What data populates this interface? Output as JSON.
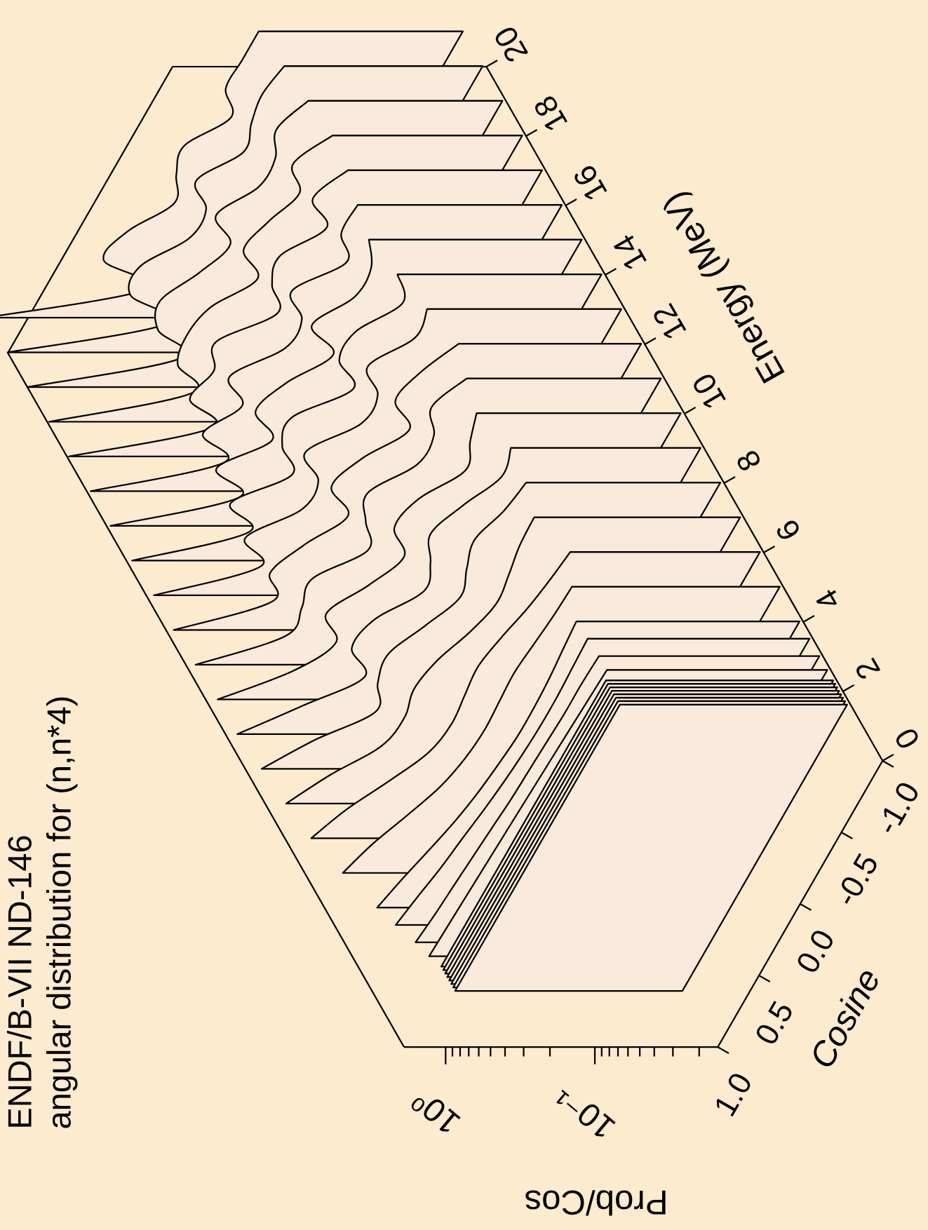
{
  "chart_data": {
    "type": "waterfall3d",
    "title": "ENDF/B-VII ND-146",
    "subtitle": "angular distribution for (n,n*4)",
    "xlabel": "Cosine",
    "ylabel": "Prob/Cos",
    "elabel": "Energy (MeV)",
    "x": [
      1,
      0.8,
      0.6,
      0.4,
      0.2,
      0,
      -0.2,
      -0.4,
      -0.6,
      -0.8,
      -1
    ],
    "xlim": [
      1,
      -1
    ],
    "xticks": [
      {
        "value": 1,
        "label": "1.0"
      },
      {
        "value": 0.5,
        "label": "0.5"
      },
      {
        "value": 0,
        "label": "0.0"
      },
      {
        "value": -0.5,
        "label": "-0.5"
      },
      {
        "value": -1,
        "label": "-1.0"
      }
    ],
    "elim": [
      0,
      20
    ],
    "eticks": [
      0,
      2,
      4,
      6,
      8,
      10,
      12,
      14,
      16,
      18,
      20
    ],
    "ylim": [
      0.015,
      1.9
    ],
    "log_y": true,
    "yticks": [
      {
        "value": 1,
        "label": "10⁰"
      },
      {
        "value": 0.1,
        "label": "10⁻¹"
      }
    ],
    "yminor_ticks": [
      0.02,
      0.03,
      0.04,
      0.05,
      0.06,
      0.07,
      0.08,
      0.09,
      0.2,
      0.3,
      0.4,
      0.5,
      0.6,
      0.7,
      0.8,
      0.9
    ],
    "color": "#faeadb",
    "background": "#fdebd0",
    "series": [
      {
        "energy": 0.6,
        "values": [
          0.5,
          0.5,
          0.5,
          0.5,
          0.5,
          0.5,
          0.5,
          0.5,
          0.5,
          0.5,
          0.5
        ]
      },
      {
        "energy": 0.7,
        "values": [
          0.5,
          0.5,
          0.5,
          0.5,
          0.5,
          0.5,
          0.5,
          0.5,
          0.5,
          0.5,
          0.5
        ]
      },
      {
        "energy": 0.8,
        "values": [
          0.5,
          0.5,
          0.5,
          0.5,
          0.5,
          0.5,
          0.5,
          0.5,
          0.5,
          0.5,
          0.5
        ]
      },
      {
        "energy": 0.9,
        "values": [
          0.5,
          0.5,
          0.5,
          0.5,
          0.5,
          0.5,
          0.5,
          0.5,
          0.5,
          0.5,
          0.5
        ]
      },
      {
        "energy": 1.0,
        "values": [
          0.5,
          0.5,
          0.5,
          0.5,
          0.5,
          0.5,
          0.5,
          0.5,
          0.5,
          0.5,
          0.5
        ]
      },
      {
        "energy": 1.1,
        "values": [
          0.5,
          0.5,
          0.5,
          0.5,
          0.5,
          0.5,
          0.5,
          0.5,
          0.5,
          0.5,
          0.5
        ]
      },
      {
        "energy": 1.2,
        "values": [
          0.5,
          0.5,
          0.5,
          0.5,
          0.5,
          0.5,
          0.5,
          0.5,
          0.5,
          0.5,
          0.5
        ]
      },
      {
        "energy": 1.3,
        "values": [
          0.5,
          0.5,
          0.5,
          0.5,
          0.5,
          0.5,
          0.5,
          0.5,
          0.5,
          0.5,
          0.5
        ]
      },
      {
        "energy": 1.6,
        "values": [
          0.55,
          0.54,
          0.53,
          0.52,
          0.51,
          0.5,
          0.49,
          0.48,
          0.47,
          0.46,
          0.45
        ]
      },
      {
        "energy": 2,
        "values": [
          0.6,
          0.57,
          0.55,
          0.53,
          0.51,
          0.49,
          0.48,
          0.47,
          0.46,
          0.46,
          0.45
        ]
      },
      {
        "energy": 2.5,
        "values": [
          0.7,
          0.64,
          0.58,
          0.54,
          0.5,
          0.47,
          0.45,
          0.44,
          0.44,
          0.45,
          0.46
        ]
      },
      {
        "energy": 3,
        "values": [
          0.8,
          0.7,
          0.6,
          0.52,
          0.47,
          0.44,
          0.42,
          0.42,
          0.43,
          0.45,
          0.47
        ]
      },
      {
        "energy": 4,
        "values": [
          1.0,
          0.82,
          0.62,
          0.48,
          0.42,
          0.4,
          0.41,
          0.42,
          0.4,
          0.38,
          0.37
        ]
      },
      {
        "energy": 5,
        "values": [
          1.2,
          0.9,
          0.6,
          0.42,
          0.38,
          0.4,
          0.42,
          0.38,
          0.33,
          0.3,
          0.28
        ]
      },
      {
        "energy": 6,
        "values": [
          1.3,
          0.85,
          0.5,
          0.45,
          0.5,
          0.45,
          0.35,
          0.3,
          0.32,
          0.35,
          0.36
        ]
      },
      {
        "energy": 7,
        "values": [
          1.4,
          0.8,
          0.4,
          0.5,
          0.55,
          0.4,
          0.3,
          0.35,
          0.4,
          0.33,
          0.3
        ]
      },
      {
        "energy": 8,
        "values": [
          1.5,
          0.7,
          0.35,
          0.55,
          0.5,
          0.3,
          0.35,
          0.45,
          0.35,
          0.25,
          0.28
        ]
      },
      {
        "energy": 9,
        "values": [
          1.5,
          0.6,
          0.4,
          0.6,
          0.4,
          0.3,
          0.45,
          0.4,
          0.25,
          0.3,
          0.35
        ]
      },
      {
        "energy": 10,
        "values": [
          1.55,
          0.5,
          0.5,
          0.55,
          0.3,
          0.4,
          0.5,
          0.3,
          0.3,
          0.4,
          0.3
        ]
      },
      {
        "energy": 11,
        "values": [
          1.6,
          0.45,
          0.6,
          0.45,
          0.3,
          0.5,
          0.4,
          0.25,
          0.4,
          0.35,
          0.25
        ]
      },
      {
        "energy": 12,
        "values": [
          1.6,
          0.4,
          0.65,
          0.35,
          0.35,
          0.55,
          0.3,
          0.3,
          0.45,
          0.28,
          0.3
        ]
      },
      {
        "energy": 13,
        "values": [
          1.65,
          0.35,
          0.6,
          0.3,
          0.45,
          0.5,
          0.25,
          0.4,
          0.4,
          0.25,
          0.35
        ]
      },
      {
        "energy": 14,
        "values": [
          1.7,
          0.3,
          0.55,
          0.3,
          0.5,
          0.4,
          0.25,
          0.45,
          0.3,
          0.3,
          0.4
        ]
      },
      {
        "energy": 15,
        "values": [
          1.7,
          0.28,
          0.5,
          0.35,
          0.55,
          0.3,
          0.3,
          0.45,
          0.25,
          0.35,
          0.35
        ]
      },
      {
        "energy": 16,
        "values": [
          1.75,
          0.25,
          0.45,
          0.4,
          0.5,
          0.25,
          0.35,
          0.4,
          0.25,
          0.4,
          0.3
        ]
      },
      {
        "energy": 17,
        "values": [
          1.75,
          0.25,
          0.4,
          0.45,
          0.4,
          0.25,
          0.4,
          0.35,
          0.28,
          0.4,
          0.28
        ]
      },
      {
        "energy": 18,
        "values": [
          1.8,
          0.22,
          0.4,
          0.5,
          0.35,
          0.28,
          0.45,
          0.3,
          0.3,
          0.38,
          0.3
        ]
      },
      {
        "energy": 19,
        "values": [
          1.8,
          0.2,
          0.45,
          0.5,
          0.3,
          0.3,
          0.45,
          0.28,
          0.32,
          0.35,
          0.32
        ]
      },
      {
        "energy": 20,
        "values": [
          1.85,
          0.2,
          0.5,
          0.45,
          0.28,
          0.35,
          0.4,
          0.25,
          0.35,
          0.35,
          0.35
        ]
      }
    ]
  }
}
